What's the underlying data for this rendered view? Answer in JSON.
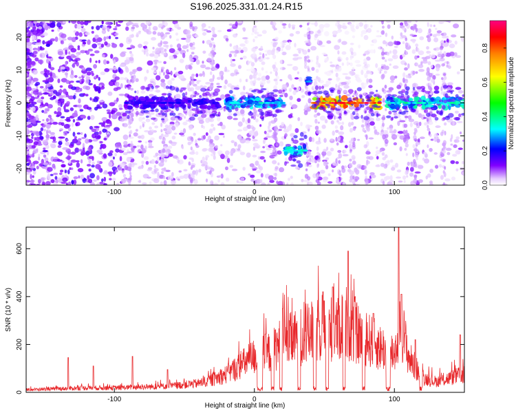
{
  "title": "S196.2025.331.01.24.R15",
  "chart_data": [
    {
      "type": "heatmap",
      "name": "spectrogram",
      "xlabel": "Height of straight line (km)",
      "ylabel": "Frequency (Hz)",
      "xlim": [
        -163,
        150
      ],
      "ylim": [
        -25,
        25
      ],
      "xticks": [
        -100,
        0,
        100
      ],
      "yticks": [
        -20,
        -10,
        0,
        10,
        20
      ],
      "colorbar": {
        "label": "Normalized spectral amplitude",
        "range": [
          0.0,
          0.96
        ],
        "ticks": [
          0.0,
          0.2,
          0.4,
          0.6,
          0.8
        ],
        "colors": [
          "#ffffff",
          "#e6ccff",
          "#8000ff",
          "#0000ff",
          "#00ffff",
          "#00ff00",
          "#ffff00",
          "#ff8000",
          "#ff0000",
          "#ff0080"
        ]
      },
      "features": [
        {
          "x_range": [
            -163,
            -95
          ],
          "freq_range": [
            -25,
            25
          ],
          "level": 0.05,
          "desc": "noise"
        },
        {
          "x_range": [
            -92,
            -25
          ],
          "freq_center": 0,
          "level": 0.2
        },
        {
          "x_range": [
            -20,
            22
          ],
          "freq_center": 0,
          "level": 0.35
        },
        {
          "x_range": [
            22,
            37
          ],
          "freq_center": -14.5,
          "level": 0.4
        },
        {
          "x_range": [
            37,
            40
          ],
          "freq_center": 6.5,
          "level": 0.3
        },
        {
          "x_range": [
            42,
            90
          ],
          "freq_center": 0,
          "level": 0.9
        },
        {
          "x_range": [
            95,
            150
          ],
          "freq_center": 0,
          "level": 0.4
        }
      ]
    },
    {
      "type": "line",
      "name": "snr",
      "xlabel": "Height of straight line (km)",
      "ylabel": "SNR (10 * v/v)",
      "xlim": [
        -163,
        150
      ],
      "ylim": [
        0,
        690
      ],
      "xticks": [
        -100,
        0,
        100
      ],
      "yticks": [
        0,
        200,
        400,
        600
      ],
      "color": "#e8282b",
      "envelope": {
        "x": [
          -163,
          -140,
          -120,
          -100,
          -80,
          -60,
          -40,
          -30,
          -20,
          -10,
          0,
          10,
          20,
          30,
          40,
          50,
          60,
          65,
          70,
          80,
          90,
          100,
          105,
          110,
          120,
          130,
          150
        ],
        "y": [
          15,
          20,
          25,
          25,
          30,
          35,
          50,
          70,
          100,
          150,
          200,
          220,
          280,
          300,
          330,
          360,
          350,
          400,
          340,
          300,
          250,
          220,
          380,
          200,
          80,
          60,
          100
        ]
      },
      "peaks": [
        [
          -133,
          145
        ],
        [
          -115,
          110
        ],
        [
          -87,
          150
        ],
        [
          -62,
          95
        ],
        [
          4,
          240
        ],
        [
          20,
          350
        ],
        [
          49,
          420
        ],
        [
          56,
          440
        ],
        [
          67,
          590
        ],
        [
          72,
          400
        ],
        [
          85,
          330
        ],
        [
          103,
          690
        ],
        [
          105,
          410
        ],
        [
          115,
          220
        ],
        [
          147,
          240
        ]
      ],
      "gaps": [
        [
          2,
          6
        ],
        [
          12,
          14
        ],
        [
          18,
          20
        ],
        [
          31,
          33
        ],
        [
          42,
          44
        ],
        [
          51,
          53
        ],
        [
          63,
          65
        ],
        [
          77,
          79
        ],
        [
          94,
          97
        ],
        [
          118,
          120
        ]
      ]
    }
  ]
}
